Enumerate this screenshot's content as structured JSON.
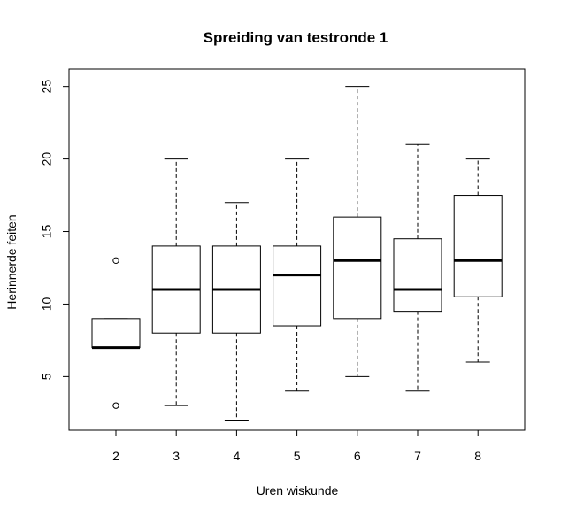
{
  "chart_data": {
    "type": "boxplot",
    "title": "Spreiding van testronde 1",
    "xlabel": "Uren wiskunde",
    "ylabel": "Herinnerde feiten",
    "ylim": [
      1.3,
      26.2
    ],
    "yticks": [
      5,
      10,
      15,
      20,
      25
    ],
    "grid": false,
    "categories": [
      "2",
      "3",
      "4",
      "5",
      "6",
      "7",
      "8"
    ],
    "boxes": [
      {
        "category": "2",
        "whisker_low": 7,
        "q1": 7,
        "median": 7,
        "q3": 9,
        "whisker_high": 9,
        "outliers": [
          3,
          13
        ]
      },
      {
        "category": "3",
        "whisker_low": 3,
        "q1": 8,
        "median": 11,
        "q3": 14,
        "whisker_high": 20,
        "outliers": []
      },
      {
        "category": "4",
        "whisker_low": 2,
        "q1": 8,
        "median": 11,
        "q3": 14,
        "whisker_high": 17,
        "outliers": []
      },
      {
        "category": "5",
        "whisker_low": 4,
        "q1": 8.5,
        "median": 12,
        "q3": 14,
        "whisker_high": 20,
        "outliers": []
      },
      {
        "category": "6",
        "whisker_low": 5,
        "q1": 9,
        "median": 13,
        "q3": 16,
        "whisker_high": 25,
        "outliers": []
      },
      {
        "category": "7",
        "whisker_low": 4,
        "q1": 9.5,
        "median": 11,
        "q3": 14.5,
        "whisker_high": 21,
        "outliers": []
      },
      {
        "category": "8",
        "whisker_low": 6,
        "q1": 10.5,
        "median": 13,
        "q3": 17.5,
        "whisker_high": 20,
        "outliers": []
      }
    ]
  }
}
